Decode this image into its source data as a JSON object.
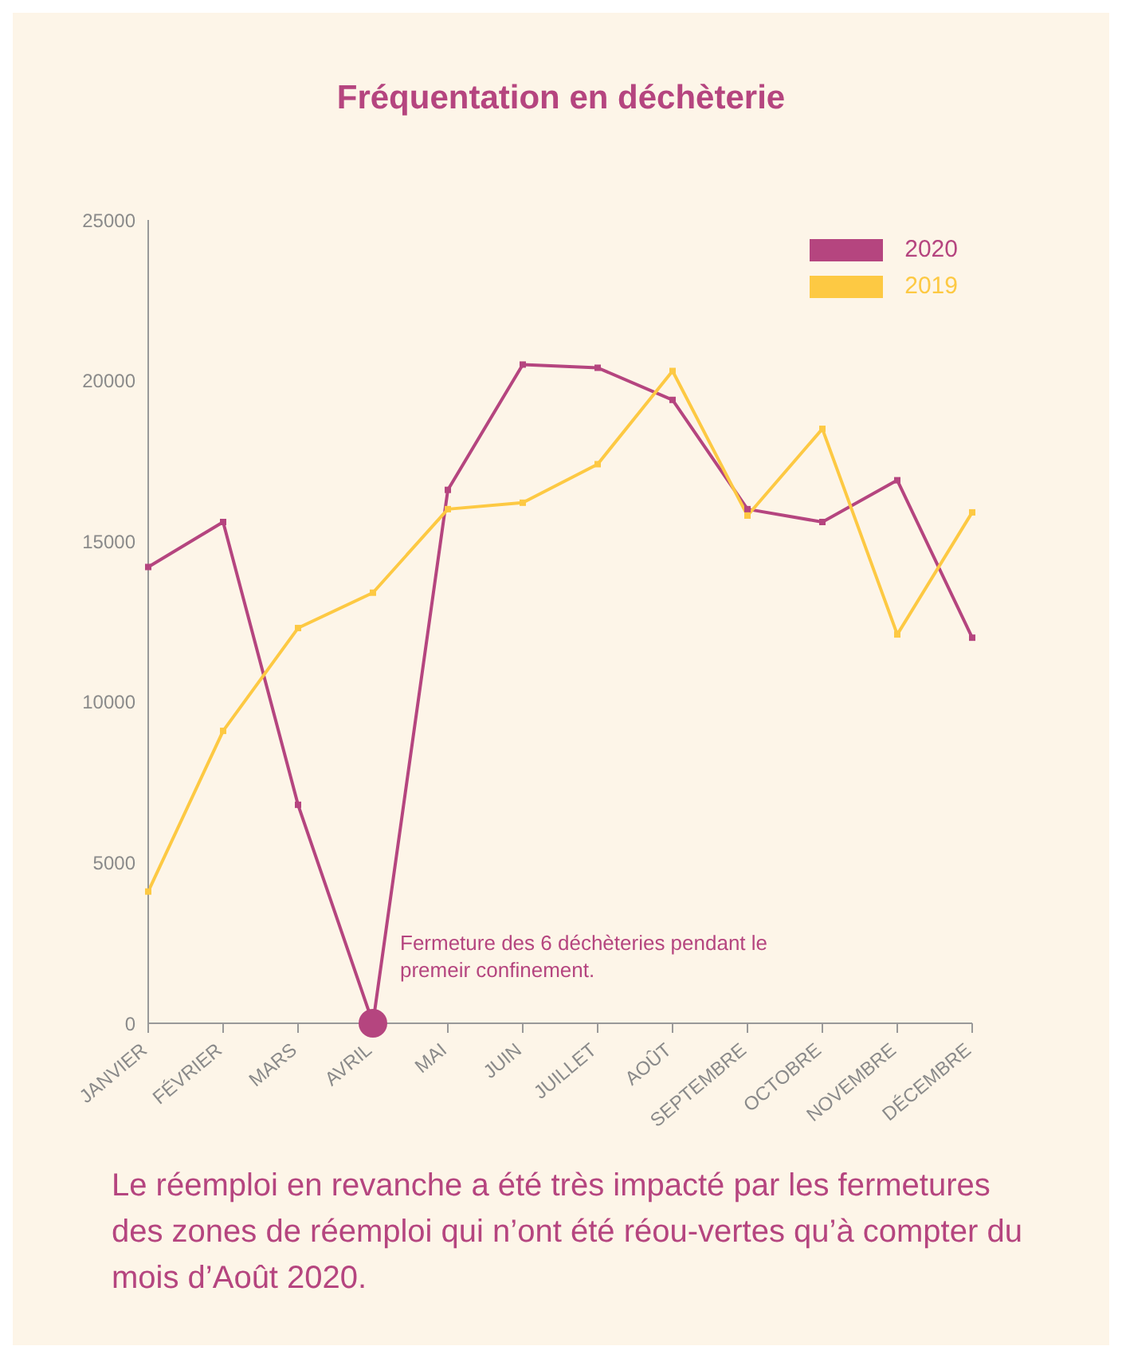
{
  "chart_data": {
    "type": "line",
    "title": "Fréquentation en déchèterie",
    "categories": [
      "JANVIER",
      "FÉVRIER",
      "MARS",
      "AVRIL",
      "MAI",
      "JUIN",
      "JUILLET",
      "AOÛT",
      "SEPTEMBRE",
      "OCTOBRE",
      "NOVEMBRE",
      "DÉCEMBRE"
    ],
    "series": [
      {
        "name": "2020",
        "color": "#b5457f",
        "values": [
          14200,
          15600,
          6800,
          0,
          16600,
          20500,
          20400,
          19400,
          16000,
          15600,
          16900,
          12000
        ]
      },
      {
        "name": "2019",
        "color": "#fdc943",
        "values": [
          4100,
          9100,
          12300,
          13400,
          16000,
          16200,
          17400,
          20300,
          15800,
          18500,
          12100,
          15900
        ]
      }
    ],
    "ylim": [
      0,
      25000
    ],
    "yticks": [
      0,
      5000,
      10000,
      15000,
      20000,
      25000
    ],
    "grid": false,
    "legend": "top right",
    "marker": "square",
    "line_style": "solid",
    "annotations": [
      {
        "text": "Fermeture des 6 déchèteries pendant le premeir confinement.",
        "x": "AVRIL",
        "y": 0
      },
      "Le réemploi en revanche a été très impacté par les fermetures des zones de réemploi qui n’ont été réou-vertes qu’à compter du mois d’Août 2020."
    ]
  }
}
